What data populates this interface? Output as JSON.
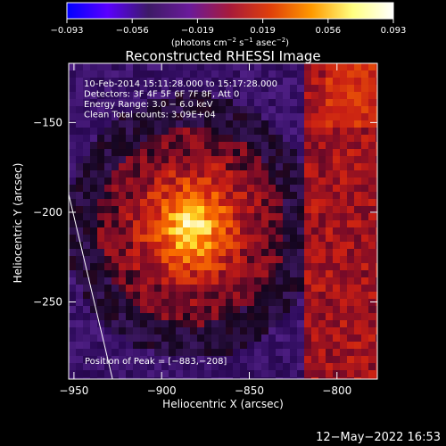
{
  "chart_data": {
    "type": "heatmap",
    "title": "Reconstructed RHESSI Image",
    "colorbar": {
      "tick_labels": [
        "−0.093",
        "−0.056",
        "−0.019",
        "0.019",
        "0.056",
        "0.093"
      ],
      "range": [
        -0.093,
        0.093
      ],
      "units_label_parts": [
        "(photons cm",
        "−2",
        " s",
        "−1",
        " asec",
        "−2",
        ")"
      ],
      "colors": [
        "#0000ff",
        "#5a00ff",
        "#3d1a66",
        "#6a1a9a",
        "#a81a3a",
        "#e0400a",
        "#ff9a00",
        "#ffff80",
        "#ffffff"
      ]
    },
    "info_lines": [
      "10-Feb-2014 15:11:28.000 to 15:17:28.000",
      "Detectors: 3F 4F 5F 6F 7F 8F, Att 0",
      "Energy Range: 3.0 − 6.0 keV",
      "Clean     Total counts: 3.09E+04"
    ],
    "peak_label": "Position of Peak = [−883,−208]",
    "peak": {
      "x": -883,
      "y": -208
    },
    "xlabel": "Heliocentric X (arcsec)",
    "ylabel": "Heliocentric Y (arcsec)",
    "xlim": [
      -953,
      -777
    ],
    "ylim": [
      -293,
      -117
    ],
    "x_ticks": [
      -950,
      -900,
      -850,
      -800
    ],
    "y_ticks": [
      -150,
      -200,
      -250
    ],
    "x_tick_labels": [
      "−950",
      "−900",
      "−850",
      "−800"
    ],
    "y_tick_labels": [
      "−150",
      "−200",
      "−250"
    ],
    "limb_line": [
      [
        -953,
        -190
      ],
      [
        -928,
        -293
      ]
    ],
    "grid": false
  },
  "footer": {
    "timestamp": "12−May−2022 16:53"
  }
}
